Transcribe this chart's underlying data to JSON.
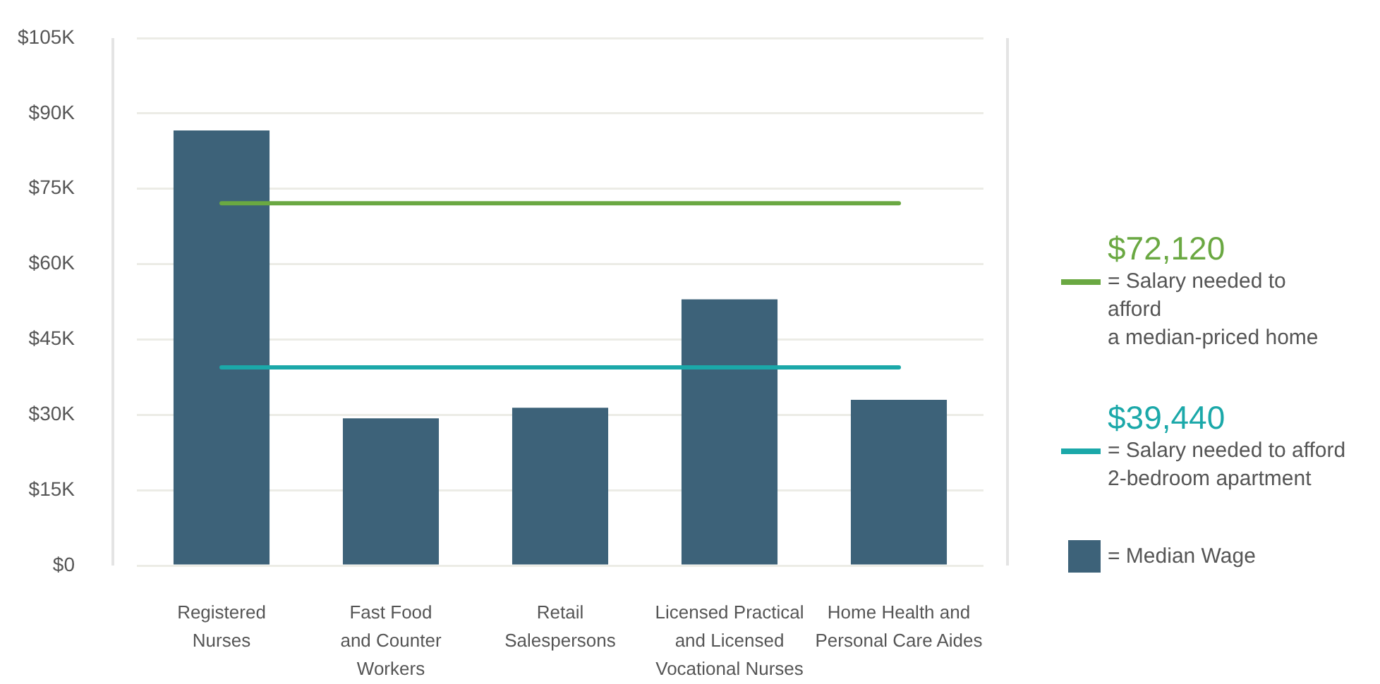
{
  "chart_data": {
    "type": "bar",
    "categories": [
      "Registered\nNurses",
      "Fast Food\nand Counter\nWorkers",
      "Retail\nSalespersons",
      "Licensed Practical\nand Licensed\nVocational Nurses",
      "Home Health and\nPersonal Care Aides"
    ],
    "series": [
      {
        "name": "= Median Wage",
        "color": "#3d6279",
        "values": [
          86600,
          29300,
          31400,
          53000,
          33000
        ]
      }
    ],
    "ylim": [
      0,
      105000
    ],
    "yticks": [
      {
        "value": 0,
        "label": "$0"
      },
      {
        "value": 15000,
        "label": "$15K"
      },
      {
        "value": 30000,
        "label": "$30K"
      },
      {
        "value": 45000,
        "label": "$45K"
      },
      {
        "value": 60000,
        "label": "$60K"
      },
      {
        "value": 75000,
        "label": "$75K"
      },
      {
        "value": 90000,
        "label": "$90K"
      },
      {
        "value": 105000,
        "label": "$105K"
      }
    ],
    "grid": "y",
    "legend": "right",
    "ref_lines": [
      {
        "axis": "y",
        "value": 72120,
        "label": "$72,120\n= Salary needed to\nafford\na median-priced home",
        "color": "#6aa842"
      },
      {
        "axis": "y",
        "value": 39440,
        "label": "$39,440\n= Salary needed to afford\n2-bedroom apartment",
        "color": "#1ba8a9"
      }
    ]
  }
}
